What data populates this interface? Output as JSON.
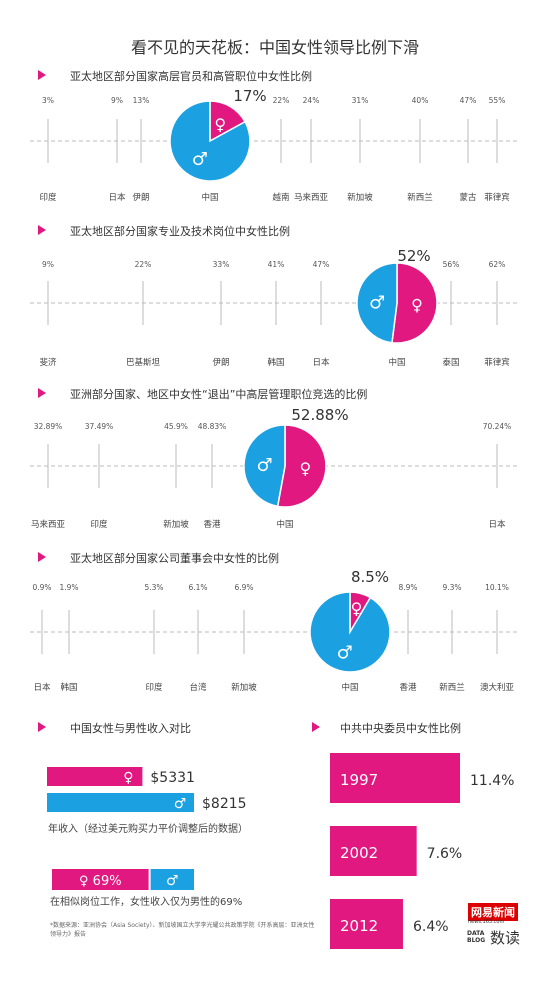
{
  "page": {
    "title": "看不见的天花板：中国女性领导比例下滑",
    "source": "*数据来源：亚洲协会（Asia Society）、新加坡国立大学李光耀公共政策学院《开系高层：亚洲女性领导力》报告",
    "logo_netease": "网易新闻",
    "logo_url": "news.163.com",
    "logo_data": "DATA BLOG",
    "logo_dudu": "数读"
  },
  "colors": {
    "female": "#e0187f",
    "male": "#1ba1e2",
    "axis": "#bbbbbb"
  },
  "chart_data": [
    {
      "type": "scatter",
      "title": "亚太地区部分国家高层官员和高管职位中女性比例",
      "points": [
        {
          "label": "印度",
          "value": "3%"
        },
        {
          "label": "日本",
          "value": "9%"
        },
        {
          "label": "伊朗",
          "value": "13%"
        },
        {
          "label": "中国",
          "value": "17%",
          "highlight": true
        },
        {
          "label": "越南",
          "value": "22%"
        },
        {
          "label": "马来西亚",
          "value": "24%"
        },
        {
          "label": "新加坡",
          "value": "31%"
        },
        {
          "label": "新西兰",
          "value": "40%"
        },
        {
          "label": "蒙古",
          "value": "47%"
        },
        {
          "label": "菲律宾",
          "value": "55%"
        }
      ],
      "highlight_pie": {
        "female": 17,
        "male": 83
      }
    },
    {
      "type": "scatter",
      "title": "亚太地区部分国家专业及技术岗位中女性比例",
      "points": [
        {
          "label": "斐济",
          "value": "9%"
        },
        {
          "label": "巴基斯坦",
          "value": "22%"
        },
        {
          "label": "伊朗",
          "value": "33%"
        },
        {
          "label": "韩国",
          "value": "41%"
        },
        {
          "label": "日本",
          "value": "47%"
        },
        {
          "label": "中国",
          "value": "52%",
          "highlight": true
        },
        {
          "label": "泰国",
          "value": "56%"
        },
        {
          "label": "菲律宾",
          "value": "62%"
        }
      ],
      "highlight_pie": {
        "female": 52,
        "male": 48
      }
    },
    {
      "type": "scatter",
      "title": "亚洲部分国家、地区中女性“退出”中高层管理职位竞选的比例",
      "points": [
        {
          "label": "马来西亚",
          "value": "32.89%"
        },
        {
          "label": "印度",
          "value": "37.49%"
        },
        {
          "label": "新加坡",
          "value": "45.9%"
        },
        {
          "label": "香港",
          "value": "48.83%"
        },
        {
          "label": "中国",
          "value": "52.88%",
          "highlight": true
        },
        {
          "label": "日本",
          "value": "70.24%"
        }
      ],
      "highlight_pie": {
        "female": 52.88,
        "male": 47.12
      }
    },
    {
      "type": "scatter",
      "title": "亚太地区部分国家公司董事会中女性的比例",
      "points": [
        {
          "label": "日本",
          "value": "0.9%"
        },
        {
          "label": "韩国",
          "value": "1.9%"
        },
        {
          "label": "印度",
          "value": "5.3%"
        },
        {
          "label": "台湾",
          "value": "6.1%"
        },
        {
          "label": "新加坡",
          "value": "6.9%"
        },
        {
          "label": "中国",
          "value": "8.5%",
          "highlight": true
        },
        {
          "label": "香港",
          "value": "8.9%"
        },
        {
          "label": "新西兰",
          "value": "9.3%"
        },
        {
          "label": "澳大利亚",
          "value": "10.1%"
        }
      ],
      "highlight_pie": {
        "female": 8.5,
        "male": 91.5
      }
    },
    {
      "type": "bar",
      "title": "中国女性与男性收入对比",
      "series": [
        {
          "name": "♀",
          "value": 5331,
          "label": "$5331"
        },
        {
          "name": "♂",
          "value": 8215,
          "label": "$8215"
        }
      ],
      "caption": "年收入（经过美元购买力平价调整后的数据）",
      "ratio_label": "♀ 69%",
      "ratio_value": 69,
      "ratio_caption": "在相似岗位工作，女性收入仅为男性的69%"
    },
    {
      "type": "bar",
      "title": "中共中央委员中女性比例",
      "categories": [
        "1997",
        "2002",
        "2012"
      ],
      "values": [
        11.4,
        7.6,
        6.4
      ],
      "value_labels": [
        "11.4%",
        "7.6%",
        "6.4%"
      ]
    }
  ]
}
